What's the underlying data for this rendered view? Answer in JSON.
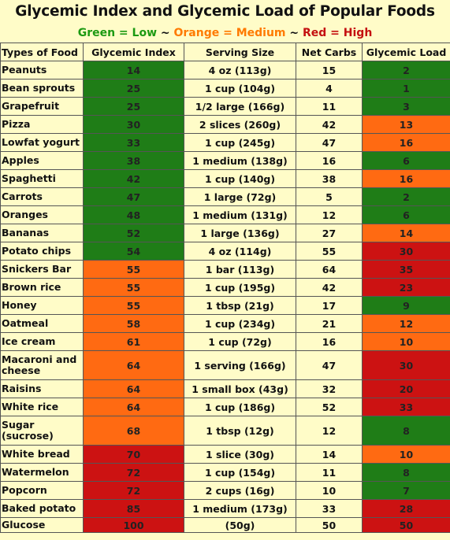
{
  "title": "Glycemic Index and Glycemic Load of Popular Foods",
  "legend": {
    "low": "Green = Low",
    "sep1": " ~ ",
    "medium": "Orange = Medium",
    "sep2": " ~ ",
    "high": "Red = High"
  },
  "colors": {
    "green": "#1f7d17",
    "orange": "#ff6a12",
    "red": "#cc1212",
    "background": "#fffcc8",
    "legend_low": "#1c9a12",
    "legend_medium": "#ff7a00",
    "legend_high": "#c41010"
  },
  "headers": [
    "Types of Food",
    "Glycemic Index",
    "Serving Size",
    "Net Carbs",
    "Glycemic Load"
  ],
  "rows": [
    {
      "food": "Peanuts",
      "gi": "14",
      "gi_level": "green",
      "serving": "4 oz (113g)",
      "carbs": "15",
      "gl": "2",
      "gl_level": "green"
    },
    {
      "food": "Bean sprouts",
      "gi": "25",
      "gi_level": "green",
      "serving": "1 cup (104g)",
      "carbs": "4",
      "gl": "1",
      "gl_level": "green"
    },
    {
      "food": "Grapefruit",
      "gi": "25",
      "gi_level": "green",
      "serving": "1/2 large (166g)",
      "carbs": "11",
      "gl": "3",
      "gl_level": "green"
    },
    {
      "food": "Pizza",
      "gi": "30",
      "gi_level": "green",
      "serving": "2 slices (260g)",
      "carbs": "42",
      "gl": "13",
      "gl_level": "orange"
    },
    {
      "food": "Lowfat yogurt",
      "gi": "33",
      "gi_level": "green",
      "serving": "1 cup (245g)",
      "carbs": "47",
      "gl": "16",
      "gl_level": "orange"
    },
    {
      "food": "Apples",
      "gi": "38",
      "gi_level": "green",
      "serving": "1 medium (138g)",
      "carbs": "16",
      "gl": "6",
      "gl_level": "green"
    },
    {
      "food": "Spaghetti",
      "gi": "42",
      "gi_level": "green",
      "serving": "1 cup (140g)",
      "carbs": "38",
      "gl": "16",
      "gl_level": "orange"
    },
    {
      "food": "Carrots",
      "gi": "47",
      "gi_level": "green",
      "serving": "1 large (72g)",
      "carbs": "5",
      "gl": "2",
      "gl_level": "green"
    },
    {
      "food": "Oranges",
      "gi": "48",
      "gi_level": "green",
      "serving": "1 medium (131g)",
      "carbs": "12",
      "gl": "6",
      "gl_level": "green"
    },
    {
      "food": "Bananas",
      "gi": "52",
      "gi_level": "green",
      "serving": "1 large (136g)",
      "carbs": "27",
      "gl": "14",
      "gl_level": "orange"
    },
    {
      "food": "Potato chips",
      "gi": "54",
      "gi_level": "green",
      "serving": "4 oz (114g)",
      "carbs": "55",
      "gl": "30",
      "gl_level": "red"
    },
    {
      "food": "Snickers Bar",
      "gi": "55",
      "gi_level": "orange",
      "serving": "1 bar (113g)",
      "carbs": "64",
      "gl": "35",
      "gl_level": "red"
    },
    {
      "food": "Brown rice",
      "gi": "55",
      "gi_level": "orange",
      "serving": "1 cup (195g)",
      "carbs": "42",
      "gl": "23",
      "gl_level": "red"
    },
    {
      "food": "Honey",
      "gi": "55",
      "gi_level": "orange",
      "serving": "1 tbsp (21g)",
      "carbs": "17",
      "gl": "9",
      "gl_level": "green"
    },
    {
      "food": "Oatmeal",
      "gi": "58",
      "gi_level": "orange",
      "serving": "1 cup (234g)",
      "carbs": "21",
      "gl": "12",
      "gl_level": "orange"
    },
    {
      "food": "Ice cream",
      "gi": "61",
      "gi_level": "orange",
      "serving": "1 cup (72g)",
      "carbs": "16",
      "gl": "10",
      "gl_level": "orange"
    },
    {
      "food": "Macaroni and cheese",
      "gi": "64",
      "gi_level": "orange",
      "serving": "1 serving (166g)",
      "carbs": "47",
      "gl": "30",
      "gl_level": "red",
      "tall": true
    },
    {
      "food": "Raisins",
      "gi": "64",
      "gi_level": "orange",
      "serving": "1 small box (43g)",
      "carbs": "32",
      "gl": "20",
      "gl_level": "red"
    },
    {
      "food": "White rice",
      "gi": "64",
      "gi_level": "orange",
      "serving": "1 cup (186g)",
      "carbs": "52",
      "gl": "33",
      "gl_level": "red"
    },
    {
      "food": "Sugar (sucrose)",
      "gi": "68",
      "gi_level": "orange",
      "serving": "1 tbsp (12g)",
      "carbs": "12",
      "gl": "8",
      "gl_level": "green",
      "tall": true
    },
    {
      "food": "White bread",
      "gi": "70",
      "gi_level": "red",
      "serving": "1 slice (30g)",
      "carbs": "14",
      "gl": "10",
      "gl_level": "orange"
    },
    {
      "food": "Watermelon",
      "gi": "72",
      "gi_level": "red",
      "serving": "1 cup (154g)",
      "carbs": "11",
      "gl": "8",
      "gl_level": "green"
    },
    {
      "food": "Popcorn",
      "gi": "72",
      "gi_level": "red",
      "serving": "2 cups (16g)",
      "carbs": "10",
      "gl": "7",
      "gl_level": "green"
    },
    {
      "food": "Baked potato",
      "gi": "85",
      "gi_level": "red",
      "serving": "1 medium (173g)",
      "carbs": "33",
      "gl": "28",
      "gl_level": "red"
    },
    {
      "food": "Glucose",
      "gi": "100",
      "gi_level": "red",
      "serving": "(50g)",
      "carbs": "50",
      "gl": "50",
      "gl_level": "red"
    }
  ]
}
